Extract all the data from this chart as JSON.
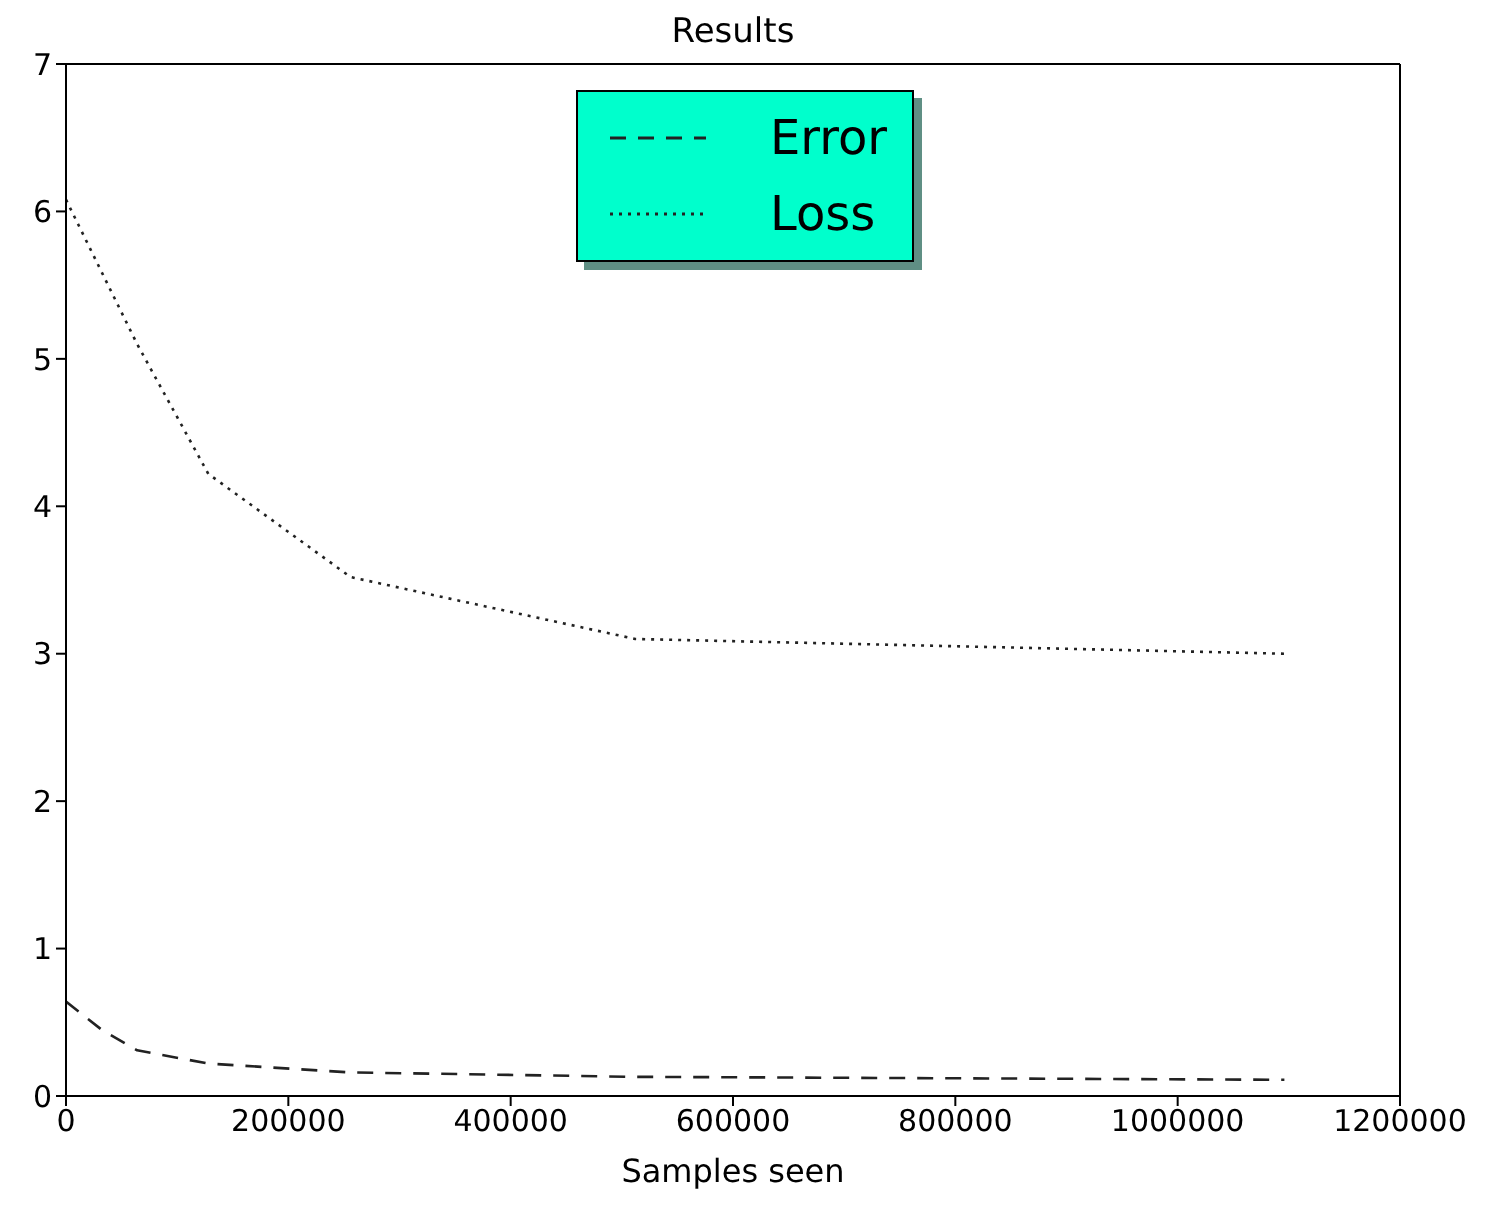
{
  "chart_data": {
    "type": "line",
    "title": "Results",
    "xlabel": "Samples seen",
    "xlim": [
      0,
      1200000
    ],
    "xticks": [
      0,
      200000,
      400000,
      600000,
      800000,
      1000000,
      1200000
    ],
    "ylim": [
      0,
      7
    ],
    "yticks": [
      0,
      1,
      2,
      3,
      4,
      5,
      6,
      7
    ],
    "legend": "top",
    "marker": "none",
    "series": [
      {
        "name": "Error",
        "color": "#222222",
        "line_style": "dashed",
        "x": [
          0,
          32000,
          64000,
          128000,
          256000,
          512000,
          1096000
        ],
        "values": [
          0.64,
          0.45,
          0.31,
          0.22,
          0.16,
          0.13,
          0.11
        ]
      },
      {
        "name": "Loss",
        "color": "#222222",
        "line_style": "dotted",
        "x": [
          0,
          64000,
          128000,
          256000,
          512000,
          1096000
        ],
        "values": [
          6.08,
          5.1,
          4.22,
          3.52,
          3.1,
          3.0
        ]
      }
    ]
  }
}
